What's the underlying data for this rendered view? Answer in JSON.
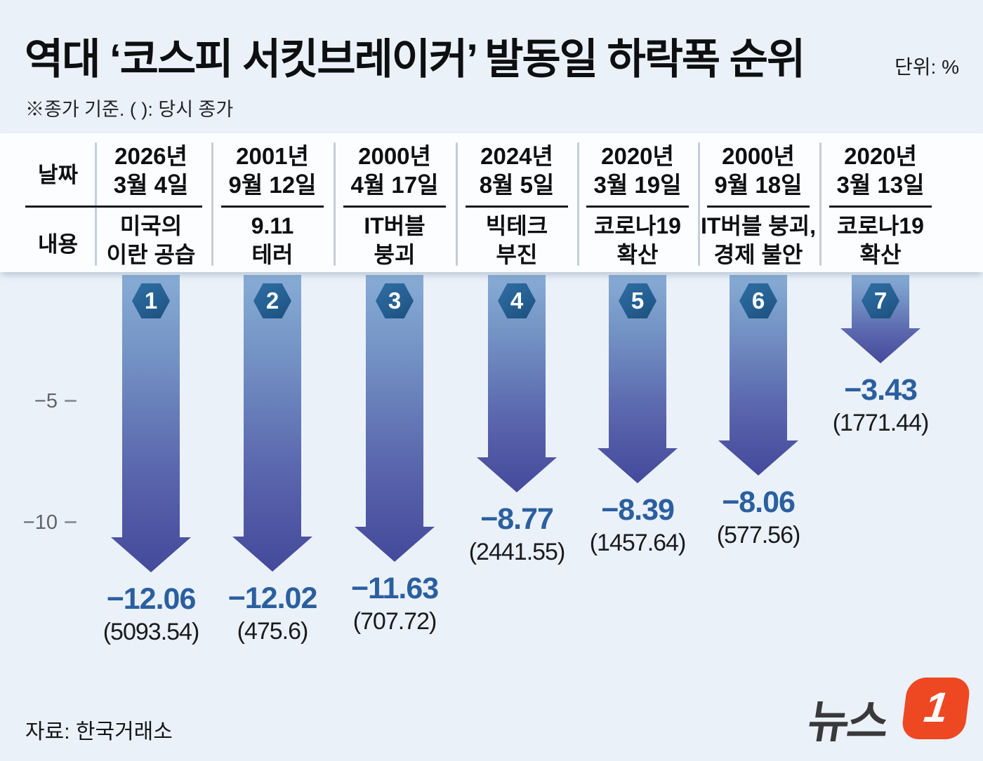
{
  "header": {
    "title": "역대 ‘코스피 서킷브레이커’ 발동일 하락폭 순위",
    "unit": "단위: %",
    "note": "※종가 기준. ( ): 당시 종가"
  },
  "table": {
    "row_labels": {
      "date": "날짜",
      "event": "내용"
    }
  },
  "columns": [
    {
      "rank": "1",
      "date": "2026년\n3월 4일",
      "event": "미국의\n이란 공습",
      "drop": "−12.06",
      "close": "(5093.54)"
    },
    {
      "rank": "2",
      "date": "2001년\n9월 12일",
      "event": "9.11\n테러",
      "drop": "−12.02",
      "close": "(475.6)"
    },
    {
      "rank": "3",
      "date": "2000년\n4월 17일",
      "event": "IT버블\n붕괴",
      "drop": "−11.63",
      "close": "(707.72)"
    },
    {
      "rank": "4",
      "date": "2024년\n8월 5일",
      "event": "빅테크\n부진",
      "drop": "−8.77",
      "close": "(2441.55)"
    },
    {
      "rank": "5",
      "date": "2020년\n3월 19일",
      "event": "코로나19\n확산",
      "drop": "−8.39",
      "close": "(1457.64)"
    },
    {
      "rank": "6",
      "date": "2000년\n9월 18일",
      "event": "IT버블 붕괴,\n경제 불안",
      "drop": "−8.06",
      "close": "(577.56)"
    },
    {
      "rank": "7",
      "date": "2020년\n3월 13일",
      "event": "코로나19\n확산",
      "drop": "−3.43",
      "close": "(1771.44)"
    }
  ],
  "axis": {
    "ticks": [
      "−5",
      "−10"
    ]
  },
  "footer": {
    "source": "자료: 한국거래소",
    "logo_text": "뉴스",
    "logo_digit": "1"
  },
  "colors": {
    "value_blue": "#2b5f9f",
    "arrow_top": "#87acd5",
    "arrow_bottom": "#45499b",
    "badge_blue": "#255f92",
    "logo_orange": "#ee4823"
  },
  "chart_data": {
    "type": "bar",
    "title": "역대 ‘코스피 서킷브레이커’ 발동일 하락폭 순위",
    "unit": "%",
    "note": "※종가 기준. ( ): 당시 종가",
    "categories": [
      "2026년 3월 4일",
      "2001년 9월 12일",
      "2000년 4월 17일",
      "2024년 8월 5일",
      "2020년 3월 19일",
      "2000년 9월 18일",
      "2020년 3월 13일"
    ],
    "events": [
      "미국의 이란 공습",
      "9.11 테러",
      "IT버블 붕괴",
      "빅테크 부진",
      "코로나19 확산",
      "IT버블 붕괴, 경제 불안",
      "코로나19 확산"
    ],
    "ranks": [
      1,
      2,
      3,
      4,
      5,
      6,
      7
    ],
    "values": [
      -12.06,
      -12.02,
      -11.63,
      -8.77,
      -8.39,
      -8.06,
      -3.43
    ],
    "closing_prices": [
      5093.54,
      475.6,
      707.72,
      2441.55,
      1457.64,
      577.56,
      1771.44
    ],
    "xlabel": "",
    "ylabel": "",
    "yticks": [
      -5,
      -10
    ],
    "ylim": [
      -13,
      0
    ],
    "grid": false,
    "legend": false,
    "source": "자료: 한국거래소"
  }
}
